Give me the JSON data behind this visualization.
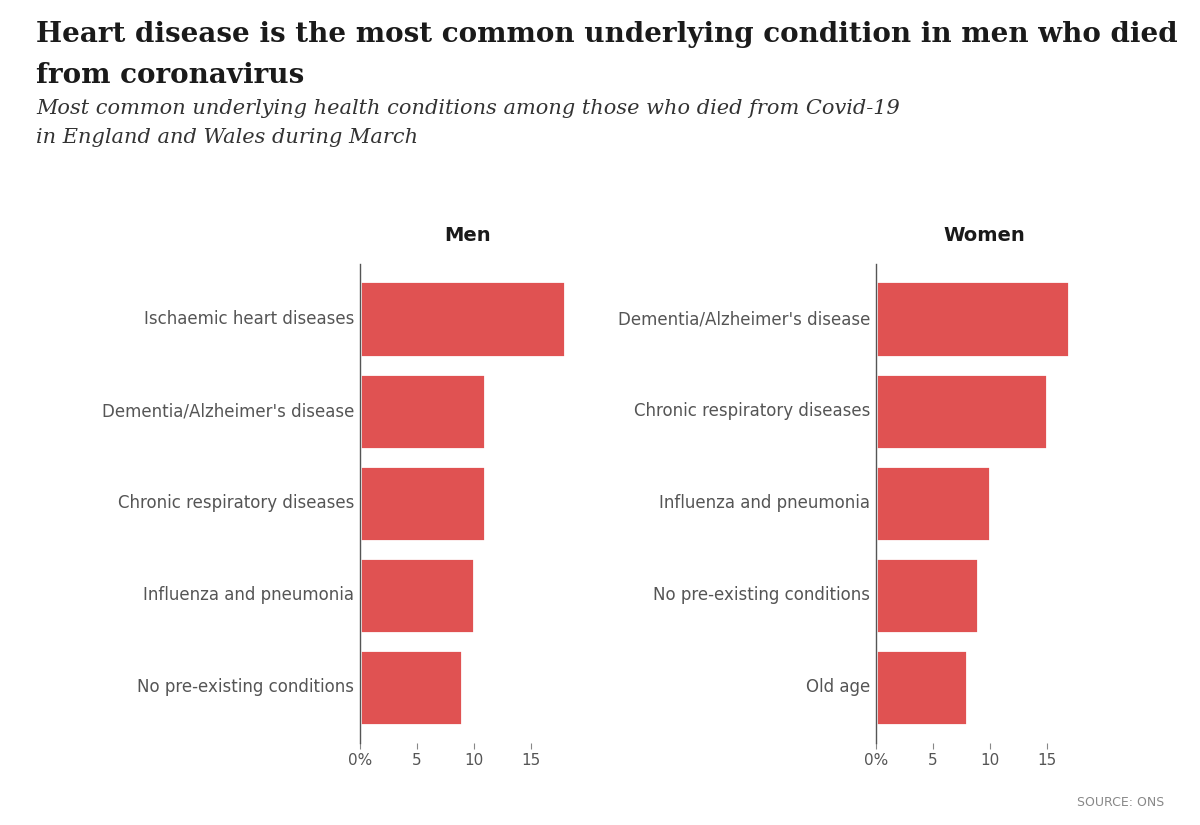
{
  "title_line1": "Heart disease is the most common underlying condition in men who died",
  "title_line2": "from coronavirus",
  "subtitle_line1": "Most common underlying health conditions among those who died from Covid-19",
  "subtitle_line2": "in England and Wales during March",
  "bar_color": "#e05252",
  "background_color": "#ffffff",
  "men": {
    "header": "Men",
    "categories": [
      "Ischaemic heart diseases",
      "Dementia/Alzheimer's disease",
      "Chronic respiratory diseases",
      "Influenza and pneumonia",
      "No pre-existing conditions"
    ],
    "values": [
      18,
      11,
      11,
      10,
      9
    ]
  },
  "women": {
    "header": "Women",
    "categories": [
      "Dementia/Alzheimer's disease",
      "Chronic respiratory diseases",
      "Influenza and pneumonia",
      "No pre-existing conditions",
      "Old age"
    ],
    "values": [
      17,
      15,
      10,
      9,
      8
    ]
  },
  "xlim": [
    0,
    19
  ],
  "xticks": [
    0,
    5,
    10,
    15
  ],
  "xticklabels": [
    "0%",
    "5",
    "10",
    "15"
  ],
  "source_text": "SOURCE: ONS",
  "title_fontsize": 20,
  "subtitle_fontsize": 15,
  "label_fontsize": 12,
  "tick_fontsize": 11,
  "header_fontsize": 14
}
